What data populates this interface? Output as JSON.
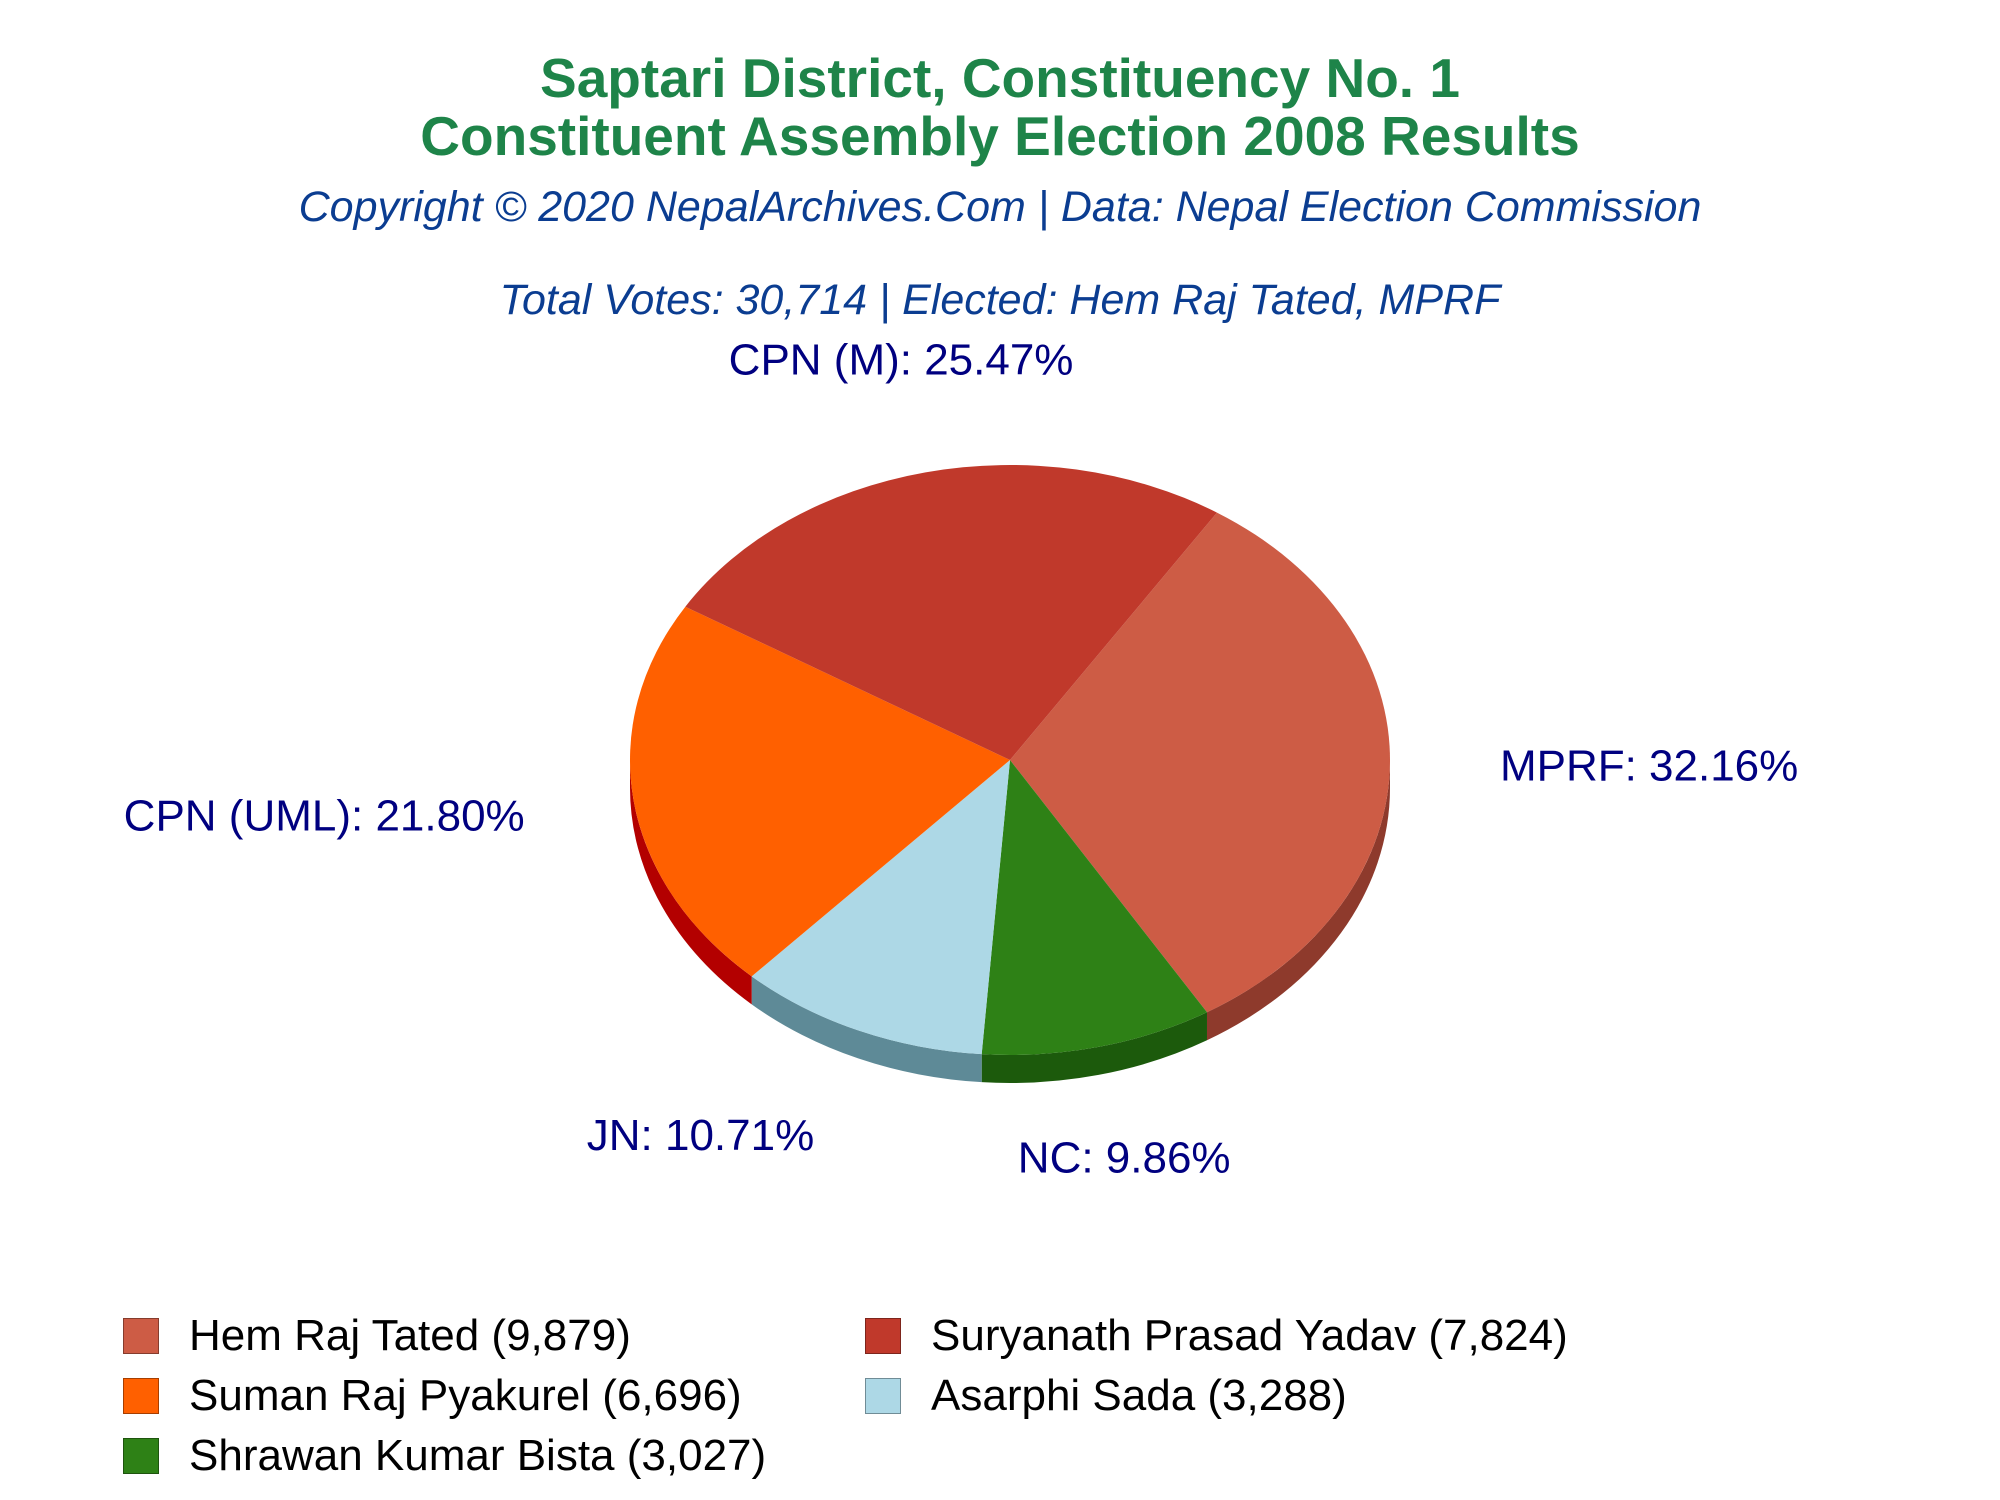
{
  "title_line1": "Saptari District, Constituency No. 1",
  "title_line2": "Constituent Assembly Election 2008 Results",
  "copyright": "Copyright © 2020 NepalArchives.Com | Data: Nepal Election Commission",
  "summary": "Total Votes: 30,714 | Elected: Hem Raj Tated, MPRF",
  "chart_data": {
    "type": "pie",
    "title": "Saptari District, Constituency No. 1 Constituent Assembly Election 2008 Results",
    "total_votes": 30714,
    "slices": [
      {
        "party": "MPRF",
        "label": "MPRF: 32.16%",
        "percent": 32.16,
        "candidate": "Hem Raj Tated",
        "votes": 9879,
        "legend": "Hem Raj Tated (9,879)",
        "color": "#cd5c45",
        "side_color": "#8e3a2c"
      },
      {
        "party": "NC",
        "label": "NC: 9.86%",
        "percent": 9.86,
        "candidate": "Shrawan Kumar Bista",
        "votes": 3027,
        "legend": "Shrawan Kumar Bista (3,027)",
        "color": "#2e8116",
        "side_color": "#1c5a0c"
      },
      {
        "party": "JN",
        "label": "JN: 10.71%",
        "percent": 10.71,
        "candidate": "Asarphi Sada",
        "votes": 3288,
        "legend": "Asarphi Sada (3,288)",
        "color": "#add8e6",
        "side_color": "#5e8a97"
      },
      {
        "party": "CPN (UML)",
        "label": "CPN (UML): 21.80%",
        "percent": 21.8,
        "candidate": "Suman Raj Pyakurel",
        "votes": 6696,
        "legend": "Suman Raj Pyakurel (6,696)",
        "color": "#ff6000",
        "side_color": "#b30000"
      },
      {
        "party": "CPN (M)",
        "label": "CPN (M): 25.47%",
        "percent": 25.47,
        "candidate": "Suryanath Prasad Yadav",
        "votes": 7824,
        "legend": "Suryanath Prasad Yadav (7,824)",
        "color": "#c0392b",
        "side_color": "#6e0f08"
      }
    ],
    "legend_order": [
      0,
      4,
      3,
      2,
      1
    ],
    "legend_placement": "bottom"
  }
}
